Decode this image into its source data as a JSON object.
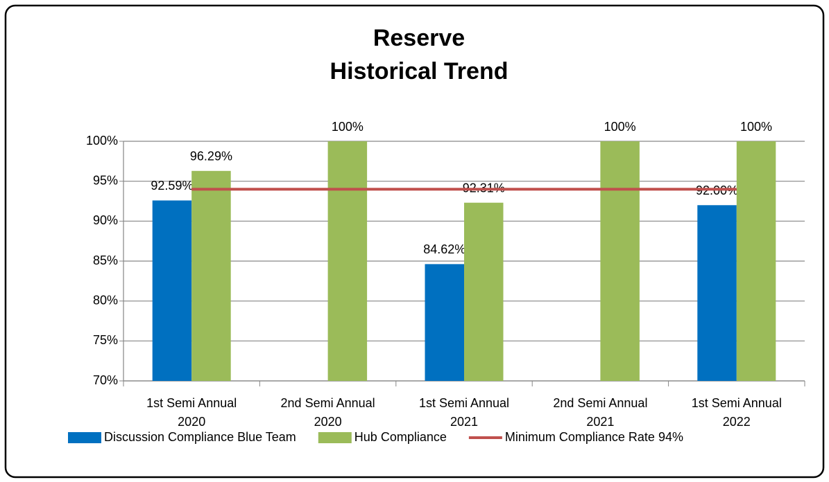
{
  "chart_data": {
    "type": "bar",
    "title": [
      "Reserve",
      "Historical Trend"
    ],
    "categories": [
      [
        "1st Semi Annual",
        "2020"
      ],
      [
        "2nd Semi Annual",
        "2020"
      ],
      [
        "1st Semi Annual",
        "2021"
      ],
      [
        "2nd Semi Annual",
        "2021"
      ],
      [
        "1st Semi Annual",
        "2022"
      ]
    ],
    "series": [
      {
        "name": "Discussion Compliance Blue Team",
        "color": "#0070c0",
        "values": [
          92.59,
          null,
          84.62,
          null,
          92.0
        ],
        "value_labels": [
          "92.59%",
          null,
          "84.62%",
          null,
          "92.00%"
        ]
      },
      {
        "name": "Hub Compliance",
        "color": "#9bbb59",
        "values": [
          96.29,
          100,
          92.31,
          100,
          100
        ],
        "value_labels": [
          "96.29%",
          "100%",
          "92.31%",
          "100%",
          "100%"
        ]
      },
      {
        "name": "Minimum Compliance Rate 94%",
        "type": "line",
        "color": "#c0504d",
        "values": [
          94,
          94,
          94,
          94,
          94
        ]
      }
    ],
    "ylim": [
      70,
      100
    ],
    "yticks": [
      {
        "value": 70,
        "label": "70%"
      },
      {
        "value": 75,
        "label": "75%"
      },
      {
        "value": 80,
        "label": "80%"
      },
      {
        "value": 85,
        "label": "85%"
      },
      {
        "value": 90,
        "label": "90%"
      },
      {
        "value": 95,
        "label": "95%"
      },
      {
        "value": 100,
        "label": "100%"
      }
    ],
    "grid": true,
    "legend": "bottom"
  }
}
